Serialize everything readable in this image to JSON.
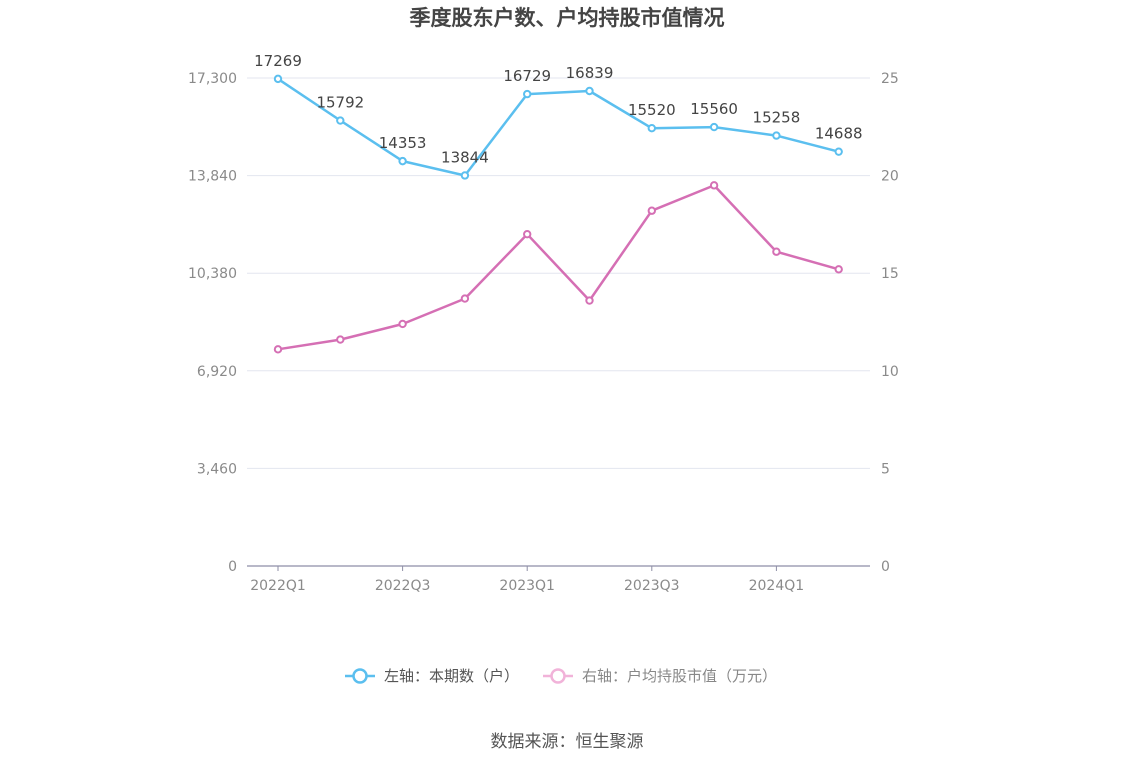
{
  "chart_data": {
    "type": "line",
    "title": "季度股东户数、户均持股市值情况",
    "categories": [
      "2022Q1",
      "2022Q2",
      "2022Q3",
      "2022Q4",
      "2023Q1",
      "2023Q2",
      "2023Q3",
      "2023Q4",
      "2024Q1",
      "2024Q2"
    ],
    "x_tick_labels": [
      "2022Q1",
      "2022Q3",
      "2023Q1",
      "2023Q3",
      "2024Q1"
    ],
    "y_left": {
      "min": 0,
      "max": 17300,
      "ticks": [
        0,
        3460,
        6920,
        10380,
        13840,
        17300
      ],
      "tick_labels": [
        "0",
        "3,460",
        "6,920",
        "10,380",
        "13,840",
        "17,300"
      ]
    },
    "y_right": {
      "min": 0,
      "max": 25,
      "ticks": [
        0,
        5,
        10,
        15,
        20,
        25
      ],
      "tick_labels": [
        "0",
        "5",
        "10",
        "15",
        "20",
        "25"
      ]
    },
    "grid": true,
    "legend_position": "bottom",
    "series": [
      {
        "name": "左轴：本期数（户）",
        "axis": "left",
        "color": "#5bbfef",
        "values": [
          17269,
          15792,
          14353,
          13844,
          16729,
          16839,
          15520,
          15560,
          15258,
          14688
        ],
        "labels": [
          "17269",
          "15792",
          "14353",
          "13844",
          "16729",
          "16839",
          "15520",
          "15560",
          "15258",
          "14688"
        ]
      },
      {
        "name": "右轴：户均持股市值（万元）",
        "axis": "right",
        "color": "#d56fb4",
        "values": [
          11.1,
          11.6,
          12.4,
          13.7,
          17.0,
          13.6,
          18.2,
          19.5,
          16.1,
          15.2
        ]
      }
    ]
  },
  "source": "数据来源：恒生聚源"
}
